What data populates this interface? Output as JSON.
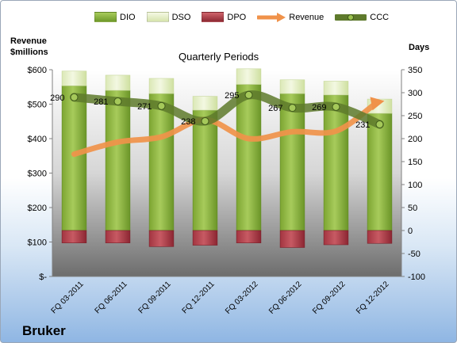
{
  "header": {
    "left_axis_title_line1": "Revenue",
    "left_axis_title_line2": "$millions",
    "right_axis_title": "Days",
    "chart_title": "Quarterly Periods",
    "company": "Bruker"
  },
  "legend": {
    "dio": "DIO",
    "dso": "DSO",
    "dpo": "DPO",
    "revenue": "Revenue",
    "ccc": "CCC"
  },
  "colors": {
    "dio": "#8cb33f",
    "dso": "#e6f0c6",
    "dpo": "#b3404a",
    "revenue": "#f0924a",
    "ccc": "#5e7a2c"
  },
  "chart_data": {
    "type": "bar",
    "title": "Quarterly Periods",
    "categories": [
      "FQ 03-2011",
      "FQ 06-2011",
      "FQ 09-2011",
      "FQ 12-2011",
      "FQ 03-2012",
      "FQ 06-2012",
      "FQ 09-2012",
      "FQ 12-2012"
    ],
    "left_axis": {
      "label": "Revenue $millions",
      "ylim": [
        0,
        600
      ],
      "ticks": [
        0,
        100,
        200,
        300,
        400,
        500,
        600
      ],
      "tick_labels": [
        "$-",
        "$100",
        "$200",
        "$300",
        "$400",
        "$500",
        "$600"
      ]
    },
    "right_axis": {
      "label": "Days",
      "ylim": [
        -100,
        350
      ],
      "ticks": [
        -100,
        -50,
        0,
        50,
        100,
        150,
        200,
        250,
        300,
        350
      ],
      "tick_labels": [
        "-100",
        "-50",
        "0",
        "50",
        "100",
        "150",
        "200",
        "250",
        "300",
        "350"
      ]
    },
    "series": [
      {
        "name": "DIO",
        "axis": "right",
        "stacked": true,
        "values": [
          315,
          305,
          298,
          262,
          318,
          298,
          295,
          255
        ]
      },
      {
        "name": "DSO",
        "axis": "right",
        "stacked": true,
        "values": [
          32,
          33,
          33,
          30,
          34,
          30,
          30,
          31
        ]
      },
      {
        "name": "DPO",
        "axis": "right",
        "stacked": false,
        "negative": true,
        "values": [
          -27,
          -27,
          -35,
          -32,
          -27,
          -37,
          -31,
          -28
        ]
      },
      {
        "name": "Revenue",
        "axis": "left",
        "type": "line",
        "values": [
          355,
          390,
          405,
          455,
          400,
          420,
          422,
          505
        ]
      },
      {
        "name": "CCC",
        "axis": "right",
        "type": "line",
        "values": [
          290,
          281,
          271,
          238,
          295,
          267,
          269,
          231
        ],
        "data_labels": [
          "290",
          "281",
          "271",
          "238",
          "295",
          "267",
          "269",
          "231"
        ]
      }
    ],
    "grid": false,
    "legend_position": "top"
  }
}
